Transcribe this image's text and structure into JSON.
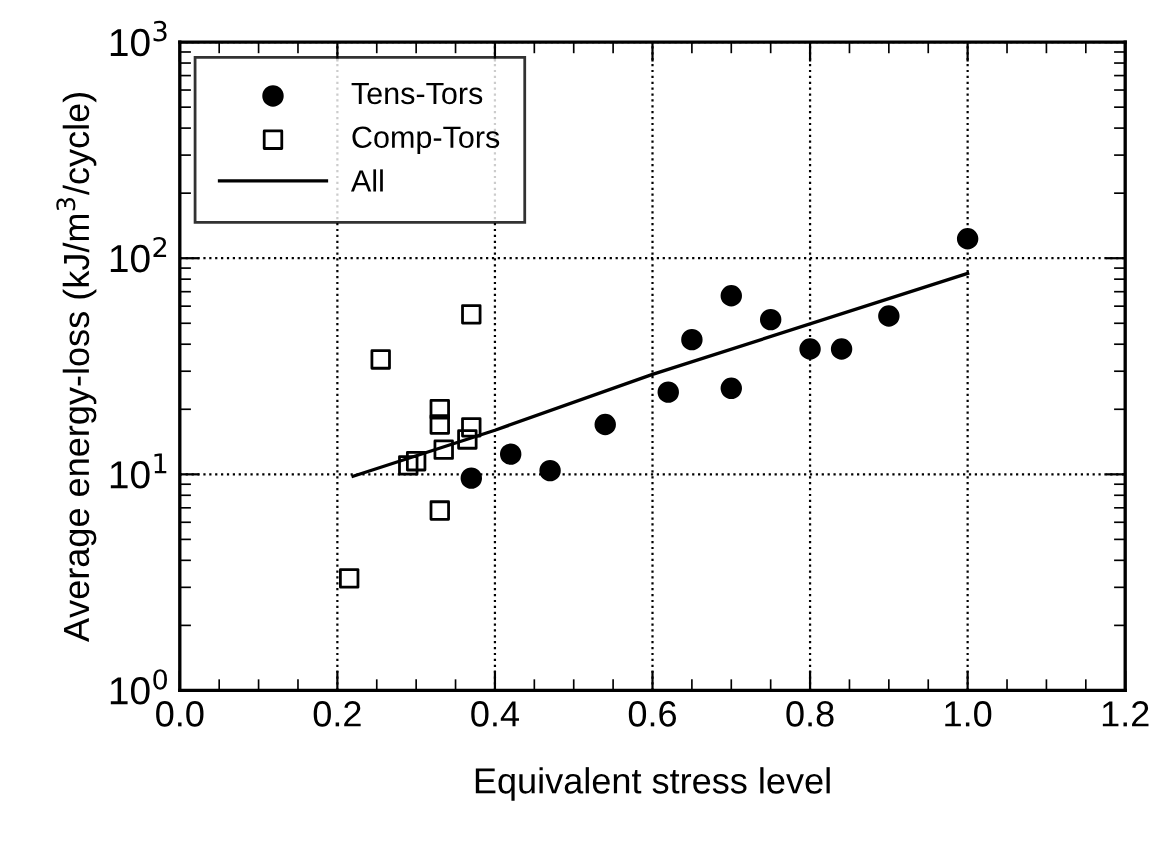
{
  "chart_data": {
    "type": "scatter",
    "xlabel": "Equivalent stress level",
    "ylabel": "Average energy-loss (kJ/m$^{3}$/cycle)",
    "log": "y",
    "grid": true,
    "legend": "top left",
    "xlim": [
      0,
      1.2
    ],
    "xticks": [
      {
        "value": 0,
        "label": "0.0"
      },
      {
        "value": 0.2,
        "label": "0.2"
      },
      {
        "value": 0.4,
        "label": "0.4"
      },
      {
        "value": 0.6,
        "label": "0.6"
      },
      {
        "value": 0.8,
        "label": "0.8"
      },
      {
        "value": 1,
        "label": "1.0"
      },
      {
        "value": 1.2,
        "label": "1.2"
      }
    ],
    "ylim": [
      1,
      1000
    ],
    "yticks": [
      {
        "value": 1,
        "label": "10$^{0}$"
      },
      {
        "value": 10,
        "label": "10$^{1}$"
      },
      {
        "value": 100,
        "label": "10$^{2}$"
      },
      {
        "value": 1000,
        "label": "10$^{3}$"
      }
    ],
    "series": [
      {
        "name": "Tens-Tors",
        "marker": "circle",
        "color": "#000000",
        "x": [
          1.0,
          0.7,
          0.75,
          0.65,
          0.8,
          0.84,
          0.9,
          0.7,
          0.62,
          0.54,
          0.42,
          0.47,
          0.37
        ],
        "values": [
          123,
          67,
          52,
          42,
          38,
          38,
          54,
          25,
          24,
          17,
          12.4,
          10.4,
          9.6
        ]
      },
      {
        "name": "Comp-Tors",
        "marker": "square",
        "color": "#000000",
        "x": [
          0.215,
          0.33,
          0.255,
          0.37,
          0.29,
          0.3,
          0.33,
          0.33,
          0.335,
          0.365,
          0.37
        ],
        "values": [
          3.3,
          6.8,
          34,
          55,
          11,
          11.5,
          20,
          17,
          13,
          14.5,
          16.5
        ]
      },
      {
        "name": "All",
        "type": "line",
        "marker": "none",
        "line_style": "solid",
        "color": "#000000",
        "x": [
          0.22,
          0.4,
          0.6,
          1.0
        ],
        "values": [
          9.8,
          16,
          29,
          85
        ]
      }
    ]
  }
}
